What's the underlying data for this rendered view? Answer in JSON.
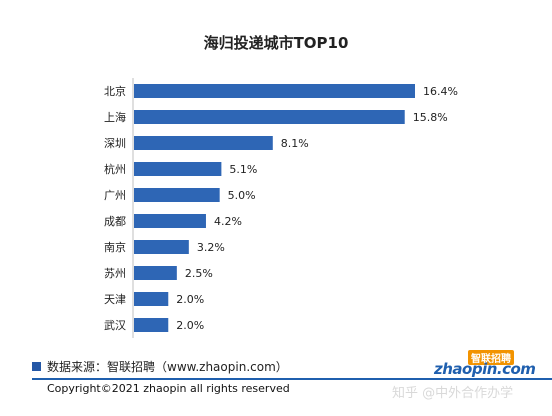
{
  "chart_data": {
    "type": "bar",
    "orientation": "horizontal",
    "title": "海归投递城市TOP10",
    "categories": [
      "北京",
      "上海",
      "深圳",
      "杭州",
      "广州",
      "成都",
      "南京",
      "苏州",
      "天津",
      "武汉"
    ],
    "values": [
      16.4,
      15.8,
      8.1,
      5.1,
      5.0,
      4.2,
      3.2,
      2.5,
      2.0,
      2.0
    ],
    "value_labels": [
      "16.4%",
      "15.8%",
      "8.1%",
      "5.1%",
      "5.0%",
      "4.2%",
      "3.2%",
      "2.5%",
      "2.0%",
      "2.0%"
    ],
    "xlim": [
      0,
      16.4
    ],
    "bar_color": "#2e66b5",
    "grid": false,
    "legend": "none"
  },
  "footer": {
    "source": "数据来源：智联招聘（www.zhaopin.com）",
    "copyright": "Copyright©2021 zhaopin all rights reserved",
    "logo_top": "智联招聘",
    "logo_main": "zhaopin.com",
    "watermark": "知乎 @中外合作办学"
  },
  "colors": {
    "accent": "#1f5fae",
    "logo_orange": "#f29300"
  }
}
